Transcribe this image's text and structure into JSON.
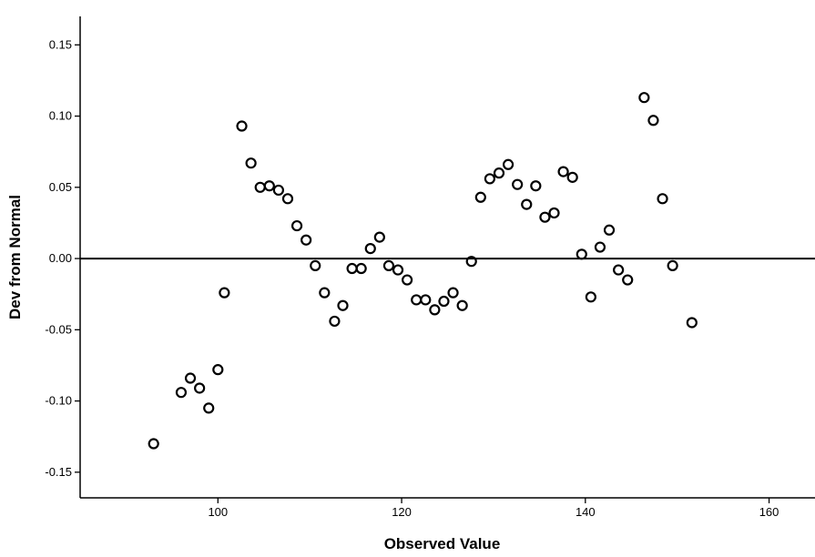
{
  "chart_data": {
    "type": "scatter",
    "title": "",
    "xlabel": "Observed Value",
    "ylabel": "Dev from Normal",
    "xlim": [
      85,
      165
    ],
    "ylim": [
      -0.168,
      0.17
    ],
    "x_ticks": [
      100,
      120,
      140,
      160
    ],
    "x_tick_labels": [
      "100",
      "120",
      "140",
      "160"
    ],
    "y_ticks": [
      0.15,
      0.1,
      0.05,
      0.0,
      -0.05,
      -0.1,
      -0.15
    ],
    "y_tick_labels": [
      "0.15",
      "0.10",
      "0.05",
      "0.00",
      "-0.05",
      "-0.10",
      "-0.15"
    ],
    "reference_line_y": 0.0,
    "grid": false,
    "marker": "open-circle",
    "color": "#000000",
    "points": [
      {
        "x": 93.0,
        "y": -0.13
      },
      {
        "x": 96.0,
        "y": -0.094
      },
      {
        "x": 97.0,
        "y": -0.084
      },
      {
        "x": 98.0,
        "y": -0.091
      },
      {
        "x": 99.0,
        "y": -0.105
      },
      {
        "x": 100.0,
        "y": -0.078
      },
      {
        "x": 100.7,
        "y": -0.024
      },
      {
        "x": 102.6,
        "y": 0.093
      },
      {
        "x": 103.6,
        "y": 0.067
      },
      {
        "x": 104.6,
        "y": 0.05
      },
      {
        "x": 105.6,
        "y": 0.051
      },
      {
        "x": 106.6,
        "y": 0.048
      },
      {
        "x": 107.6,
        "y": 0.042
      },
      {
        "x": 108.6,
        "y": 0.023
      },
      {
        "x": 109.6,
        "y": 0.013
      },
      {
        "x": 110.6,
        "y": -0.005
      },
      {
        "x": 111.6,
        "y": -0.024
      },
      {
        "x": 112.7,
        "y": -0.044
      },
      {
        "x": 113.6,
        "y": -0.033
      },
      {
        "x": 114.6,
        "y": -0.007
      },
      {
        "x": 115.6,
        "y": -0.007
      },
      {
        "x": 116.6,
        "y": 0.007
      },
      {
        "x": 117.6,
        "y": 0.015
      },
      {
        "x": 118.6,
        "y": -0.005
      },
      {
        "x": 119.6,
        "y": -0.008
      },
      {
        "x": 120.6,
        "y": -0.015
      },
      {
        "x": 121.6,
        "y": -0.029
      },
      {
        "x": 122.6,
        "y": -0.029
      },
      {
        "x": 123.6,
        "y": -0.036
      },
      {
        "x": 124.6,
        "y": -0.03
      },
      {
        "x": 125.6,
        "y": -0.024
      },
      {
        "x": 126.6,
        "y": -0.033
      },
      {
        "x": 127.6,
        "y": -0.002
      },
      {
        "x": 128.6,
        "y": 0.043
      },
      {
        "x": 129.6,
        "y": 0.056
      },
      {
        "x": 130.6,
        "y": 0.06
      },
      {
        "x": 131.6,
        "y": 0.066
      },
      {
        "x": 132.6,
        "y": 0.052
      },
      {
        "x": 133.6,
        "y": 0.038
      },
      {
        "x": 134.6,
        "y": 0.051
      },
      {
        "x": 135.6,
        "y": 0.029
      },
      {
        "x": 136.6,
        "y": 0.032
      },
      {
        "x": 137.6,
        "y": 0.061
      },
      {
        "x": 138.6,
        "y": 0.057
      },
      {
        "x": 139.6,
        "y": 0.003
      },
      {
        "x": 140.6,
        "y": -0.027
      },
      {
        "x": 141.6,
        "y": 0.008
      },
      {
        "x": 142.6,
        "y": 0.02
      },
      {
        "x": 143.6,
        "y": -0.008
      },
      {
        "x": 144.6,
        "y": -0.015
      },
      {
        "x": 146.4,
        "y": 0.113
      },
      {
        "x": 147.4,
        "y": 0.097
      },
      {
        "x": 148.4,
        "y": 0.042
      },
      {
        "x": 149.5,
        "y": -0.005
      },
      {
        "x": 151.6,
        "y": -0.045
      }
    ]
  }
}
